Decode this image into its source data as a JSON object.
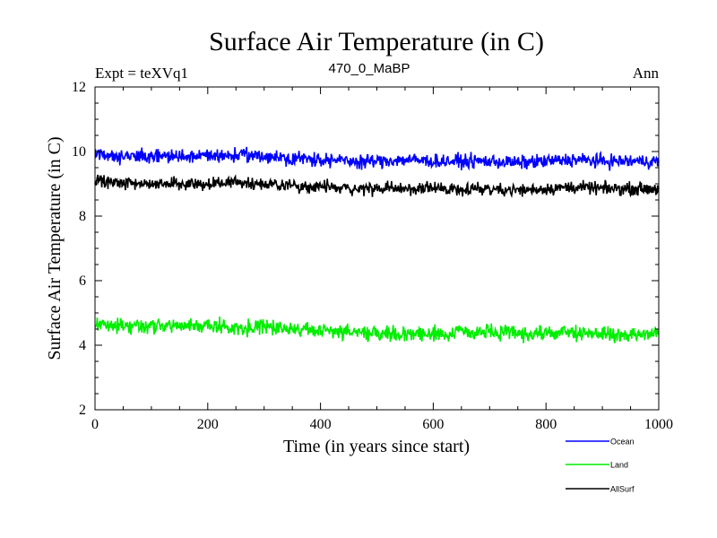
{
  "chart_data": {
    "type": "line",
    "title": "Surface Air Temperature (in C)",
    "subtitle_left": "Expt = teXVq1",
    "subtitle_center": "470_0_MaBP",
    "subtitle_right": "Ann",
    "xlabel": "Time (in years since start)",
    "ylabel": "Surface Air Temperature (in C)",
    "xlim": [
      0,
      1000
    ],
    "ylim": [
      2,
      12
    ],
    "x_ticks": [
      0,
      200,
      400,
      600,
      800,
      1000
    ],
    "y_ticks": [
      2,
      4,
      6,
      8,
      10,
      12
    ],
    "x_tick_labels": [
      "0",
      "200",
      "400",
      "600",
      "800",
      "1000"
    ],
    "y_tick_labels": [
      "2",
      "4",
      "6",
      "8",
      "10",
      "12"
    ],
    "grid": false,
    "legend_position": "bottom-right, outside plot",
    "series": [
      {
        "name": "Ocean",
        "color": "#0000ff",
        "x": [
          0,
          50,
          100,
          150,
          200,
          250,
          300,
          350,
          400,
          450,
          500,
          550,
          600,
          650,
          700,
          750,
          800,
          850,
          900,
          950,
          1000
        ],
        "values": [
          9.95,
          9.85,
          9.85,
          9.85,
          9.85,
          9.9,
          9.85,
          9.8,
          9.75,
          9.7,
          9.7,
          9.75,
          9.7,
          9.7,
          9.7,
          9.65,
          9.7,
          9.75,
          9.7,
          9.7,
          9.7
        ],
        "noise": 0.2
      },
      {
        "name": "Land",
        "color": "#00ee00",
        "x": [
          0,
          50,
          100,
          150,
          200,
          250,
          300,
          350,
          400,
          450,
          500,
          550,
          600,
          650,
          700,
          750,
          800,
          850,
          900,
          950,
          1000
        ],
        "values": [
          4.65,
          4.6,
          4.6,
          4.6,
          4.6,
          4.55,
          4.55,
          4.55,
          4.45,
          4.4,
          4.4,
          4.35,
          4.35,
          4.4,
          4.4,
          4.35,
          4.35,
          4.4,
          4.35,
          4.3,
          4.35
        ],
        "noise": 0.22
      },
      {
        "name": "AllSurf",
        "color": "#000000",
        "x": [
          0,
          50,
          100,
          150,
          200,
          250,
          300,
          350,
          400,
          450,
          500,
          550,
          600,
          650,
          700,
          750,
          800,
          850,
          900,
          950,
          1000
        ],
        "values": [
          9.1,
          9.0,
          9.0,
          9.0,
          9.0,
          9.05,
          9.0,
          8.95,
          8.9,
          8.85,
          8.85,
          8.85,
          8.85,
          8.85,
          8.85,
          8.8,
          8.85,
          8.9,
          8.85,
          8.85,
          8.85
        ],
        "noise": 0.18
      }
    ]
  }
}
